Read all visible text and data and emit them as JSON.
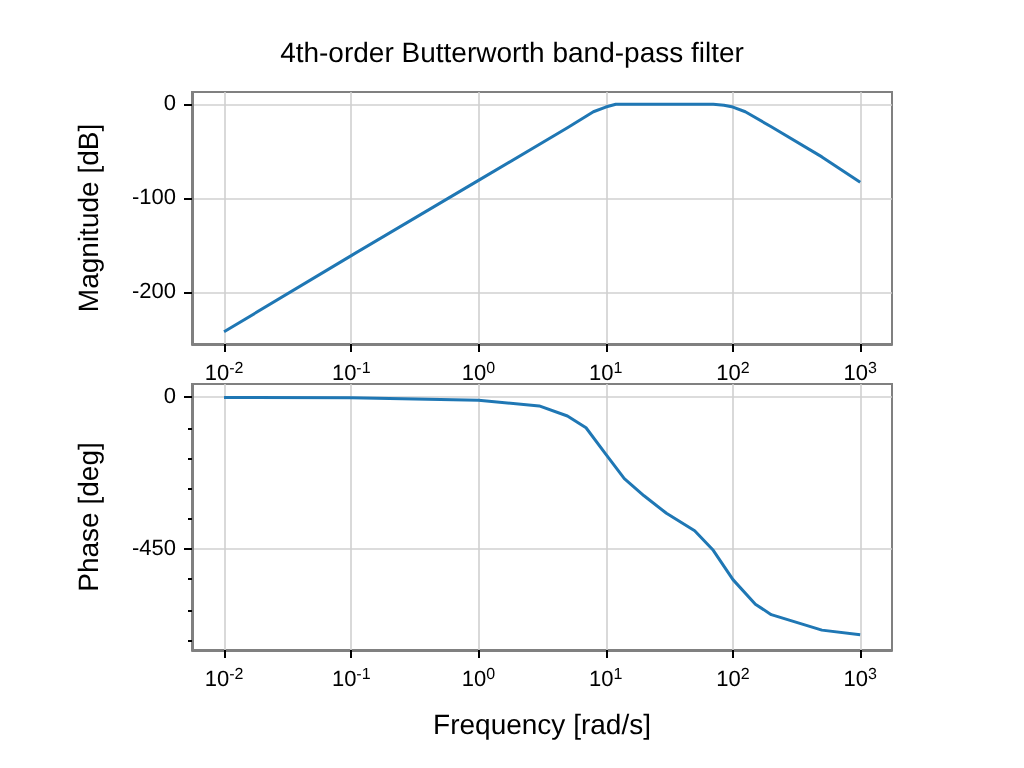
{
  "chart_data": [
    {
      "type": "line",
      "title": "4th-order Butterworth band-pass filter",
      "ylabel": "Magnitude [dB]",
      "log": "x",
      "grid": true,
      "marker": "none",
      "line_style": "solid",
      "x": [
        0.01,
        0.1,
        1,
        5,
        8,
        10,
        12,
        15,
        30,
        70,
        85,
        100,
        125,
        200,
        500,
        1000
      ],
      "series": [
        {
          "color": "#1f77b4",
          "values": [
            -242,
            -161,
            -81,
            -25,
            -8,
            -3,
            0,
            0,
            0,
            0,
            -1,
            -3,
            -8,
            -24,
            -56,
            -83
          ]
        }
      ],
      "xlim": [
        0.0056,
        1778
      ],
      "ylim": [
        -255,
        13
      ],
      "xticks": [
        {
          "value": 0.01,
          "label": "10$^{-2}$"
        },
        {
          "value": 0.1,
          "label": "10$^{-1}$"
        },
        {
          "value": 1,
          "label": "10$^{0}$"
        },
        {
          "value": 10,
          "label": "10$^{1}$"
        },
        {
          "value": 100,
          "label": "10$^{2}$"
        },
        {
          "value": 1000,
          "label": "10$^{3}$"
        }
      ],
      "yticks": [
        -200,
        -100,
        0
      ]
    },
    {
      "type": "line",
      "xlabel": "Frequency [rad/s]",
      "ylabel": "Phase [deg]",
      "log": "x",
      "grid": true,
      "marker": "none",
      "line_style": "solid",
      "x": [
        0.01,
        0.1,
        1,
        3,
        5,
        7,
        10,
        14,
        20,
        30,
        50,
        70,
        100,
        150,
        200,
        500,
        1000
      ],
      "series": [
        {
          "color": "#1f77b4",
          "values": [
            0,
            -1,
            -8,
            -25,
            -55,
            -90,
            -168,
            -241,
            -292,
            -344,
            -396,
            -454,
            -541,
            -614,
            -645,
            -691,
            -705
          ]
        }
      ],
      "xlim": [
        0.0056,
        1778
      ],
      "ylim": [
        -750,
        40
      ],
      "xticks": [
        {
          "value": 0.01,
          "label": "10$^{-2}$"
        },
        {
          "value": 0.1,
          "label": "10$^{-1}$"
        },
        {
          "value": 1,
          "label": "10$^{0}$"
        },
        {
          "value": 10,
          "label": "10$^{1}$"
        },
        {
          "value": 100,
          "label": "10$^{2}$"
        },
        {
          "value": 1000,
          "label": "10$^{3}$"
        }
      ],
      "yticks": [
        {
          "value": -720,
          "label": null
        },
        {
          "value": -630,
          "label": null
        },
        {
          "value": -540,
          "label": null
        },
        -450,
        {
          "value": -360,
          "label": null
        },
        {
          "value": -270,
          "label": null
        },
        {
          "value": -180,
          "label": null
        },
        {
          "value": -90,
          "label": null
        },
        0
      ]
    }
  ]
}
